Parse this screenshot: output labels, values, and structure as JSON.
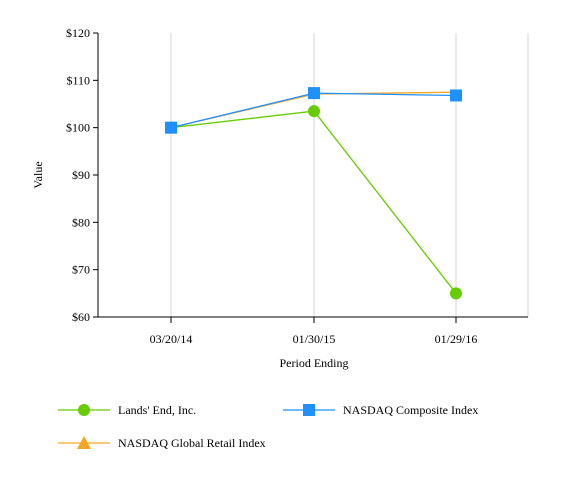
{
  "chart_data": {
    "type": "line",
    "title": "",
    "xlabel": "Period Ending",
    "ylabel": "Value",
    "categories": [
      "03/20/14",
      "01/30/15",
      "01/29/16"
    ],
    "y_ticks": [
      "$60",
      "$70",
      "$80",
      "$90",
      "$100",
      "$110",
      "$120"
    ],
    "y_tick_values": [
      60,
      70,
      80,
      90,
      100,
      110,
      120
    ],
    "ylim": [
      60,
      120
    ],
    "grid": "vertical",
    "legend_position": "bottom",
    "series": [
      {
        "name": "Lands' End, Inc.",
        "values": [
          100,
          103.5,
          65
        ],
        "color": "#66cc00",
        "marker": "circle"
      },
      {
        "name": "NASDAQ Composite Index",
        "values": [
          100,
          107.3,
          106.8
        ],
        "color": "#1e90ff",
        "marker": "square"
      },
      {
        "name": "NASDAQ Global Retail Index",
        "values": [
          100,
          107.1,
          107.5
        ],
        "color": "#f5a623",
        "marker": "triangle"
      }
    ]
  }
}
